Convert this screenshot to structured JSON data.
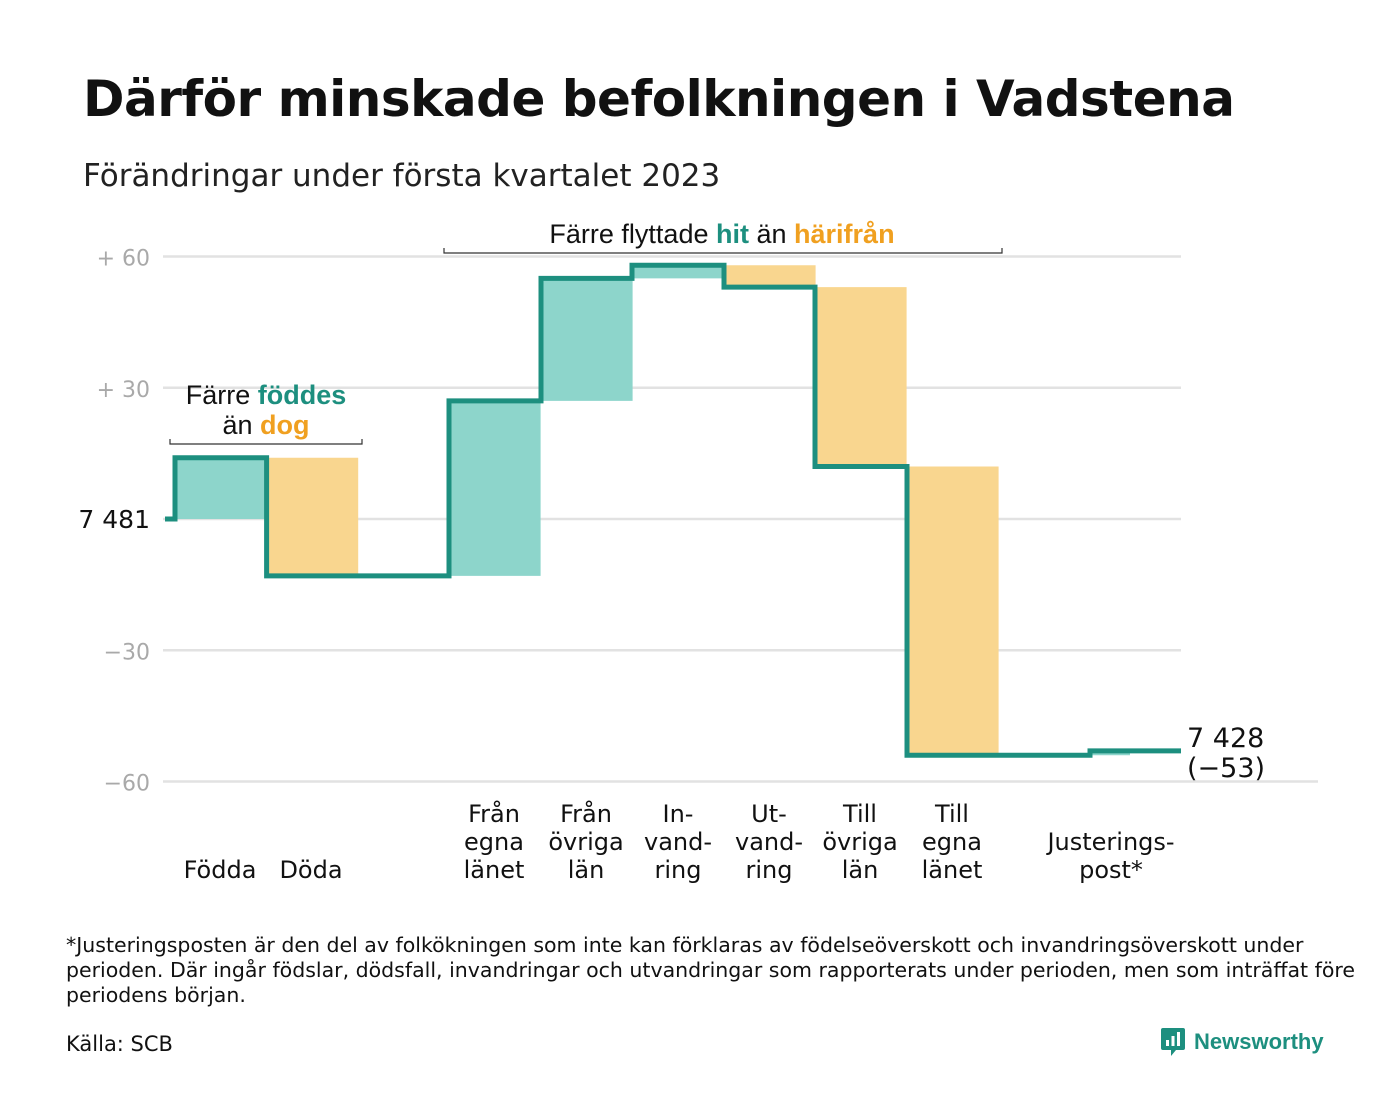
{
  "header": {
    "title": "Därför minskade befolkningen i Vadstena",
    "subtitle": "Förändringar under första kvartalet 2023"
  },
  "colors": {
    "increase_fill": "#8dd5cb",
    "decrease_fill": "#f9d68f",
    "line": "#1d8f7f",
    "teal_text": "#1d8f7f",
    "orange_text": "#f0a020",
    "grid": "#e2e2e2",
    "tick_text": "#a9a9a9"
  },
  "chart_data": {
    "type": "waterfall",
    "start_value": 7481,
    "start_label": "7 481",
    "end_value": 7428,
    "end_label": "7 428",
    "end_change_label": "(−53)",
    "y_relative_range": [
      -60,
      60
    ],
    "y_ticks": [
      {
        "value": 60,
        "label": "+ 60"
      },
      {
        "value": 30,
        "label": "+ 30"
      },
      {
        "value": 0,
        "label": ""
      },
      {
        "value": -30,
        "label": "−30"
      },
      {
        "value": -60,
        "label": "−60"
      }
    ],
    "steps": [
      {
        "category": [
          "Födda"
        ],
        "value": 14,
        "bottom_aligned": true
      },
      {
        "category": [
          "Döda"
        ],
        "value": -27,
        "bottom_aligned": true
      },
      {
        "category": [
          "Från",
          "egna",
          "länet"
        ],
        "value": 40
      },
      {
        "category": [
          "Från",
          "övriga",
          "län"
        ],
        "value": 28
      },
      {
        "category": [
          "In-",
          "vand-",
          "ring"
        ],
        "value": 3
      },
      {
        "category": [
          "Ut-",
          "vand-",
          "ring"
        ],
        "value": -5
      },
      {
        "category": [
          "Till",
          "övriga",
          "län"
        ],
        "value": -41
      },
      {
        "category": [
          "Till",
          "egna",
          "länet"
        ],
        "value": -66
      },
      {
        "category": [
          "Justerings-",
          "post*"
        ],
        "value": 1
      }
    ],
    "annotations": {
      "births": {
        "line1": [
          "Färre ",
          "föddes"
        ],
        "line2": [
          "än ",
          "dog"
        ]
      },
      "migration": [
        "Färre flyttade ",
        "hit",
        " än ",
        "härifrån"
      ]
    },
    "grid": true,
    "legend": "none"
  },
  "footer": {
    "footnote": "*Justeringsposten är den del av folkökningen som inte kan förklaras av födelseöverskott och invandringsöverskott under perioden. Där ingår födslar, dödsfall, invandringar och utvandringar som rapporterats under perioden, men som inträffat före periodens början.",
    "source": "Källa: SCB",
    "brand": "Newsworthy"
  }
}
